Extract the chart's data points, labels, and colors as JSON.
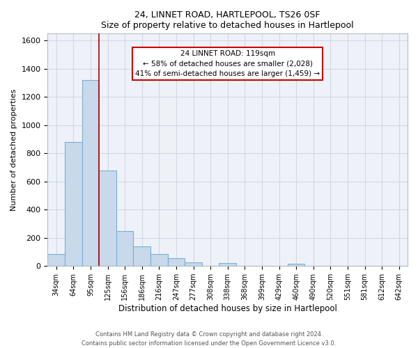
{
  "title": "24, LINNET ROAD, HARTLEPOOL, TS26 0SF",
  "subtitle": "Size of property relative to detached houses in Hartlepool",
  "xlabel": "Distribution of detached houses by size in Hartlepool",
  "ylabel": "Number of detached properties",
  "bar_labels": [
    "34sqm",
    "64sqm",
    "95sqm",
    "125sqm",
    "156sqm",
    "186sqm",
    "216sqm",
    "247sqm",
    "277sqm",
    "308sqm",
    "338sqm",
    "368sqm",
    "399sqm",
    "429sqm",
    "460sqm",
    "490sqm",
    "520sqm",
    "551sqm",
    "581sqm",
    "612sqm",
    "642sqm"
  ],
  "bar_values": [
    85,
    880,
    1320,
    680,
    250,
    140,
    85,
    55,
    28,
    0,
    20,
    0,
    0,
    0,
    15,
    0,
    0,
    0,
    0,
    0,
    0
  ],
  "bar_color": "#c8d9ec",
  "bar_edge_color": "#7aaed4",
  "property_line_color": "#aa0000",
  "annotation_title": "24 LINNET ROAD: 119sqm",
  "annotation_line1": "← 58% of detached houses are smaller (2,028)",
  "annotation_line2": "41% of semi-detached houses are larger (1,459) →",
  "annotation_box_color": "#ffffff",
  "annotation_box_edge": "#cc0000",
  "ylim": [
    0,
    1650
  ],
  "yticks": [
    0,
    200,
    400,
    600,
    800,
    1000,
    1200,
    1400,
    1600
  ],
  "grid_color": "#d0d8e4",
  "footer_line1": "Contains HM Land Registry data © Crown copyright and database right 2024.",
  "footer_line2": "Contains public sector information licensed under the Open Government Licence v3.0.",
  "bg_color": "#eef2f8",
  "fig_bg_color": "#ffffff",
  "property_line_xindex": 2.5
}
